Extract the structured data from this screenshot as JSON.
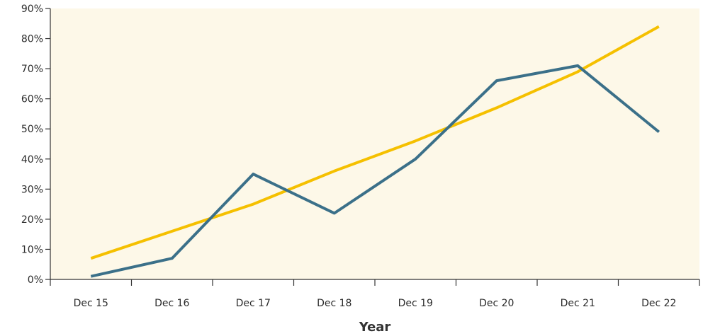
{
  "chart_data": {
    "type": "line",
    "xlabel": "Year",
    "ylabel": "",
    "categories": [
      "Dec 15",
      "Dec 16",
      "Dec 17",
      "Dec 18",
      "Dec 19",
      "Dec 20",
      "Dec 21",
      "Dec 22"
    ],
    "ylim": [
      0,
      90
    ],
    "yticks": [
      "0%",
      "10%",
      "20%",
      "30%",
      "40%",
      "50%",
      "60%",
      "70%",
      "80%",
      "90%"
    ],
    "grid": false,
    "legend": "none",
    "series": [
      {
        "color": "#f5c000",
        "values": [
          7,
          16,
          25,
          36,
          46,
          57,
          69,
          84
        ]
      },
      {
        "color": "#3b7089",
        "values": [
          1,
          7,
          35,
          22,
          40,
          66,
          71,
          49
        ]
      }
    ],
    "colors": {
      "plot_background": "#fdf8e8",
      "axis": "#333333"
    }
  }
}
